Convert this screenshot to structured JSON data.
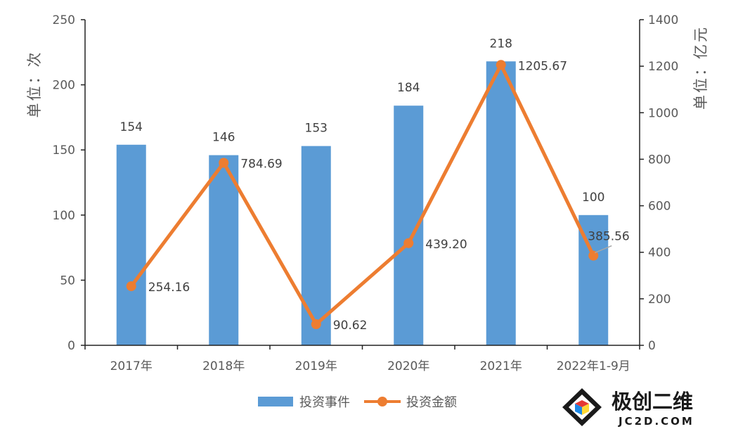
{
  "chart_data": {
    "type": "bar+line",
    "categories": [
      "2017年",
      "2018年",
      "2019年",
      "2020年",
      "2021年",
      "2022年1-9月"
    ],
    "series": [
      {
        "name": "投资事件",
        "type": "bar",
        "axis": "left",
        "color": "#5B9BD5",
        "values": [
          154,
          146,
          153,
          184,
          218,
          100
        ],
        "labels": [
          "154",
          "146",
          "153",
          "184",
          "218",
          "100"
        ]
      },
      {
        "name": "投资金额",
        "type": "line",
        "axis": "right",
        "color": "#ED7D31",
        "values": [
          254.16,
          784.69,
          90.62,
          439.2,
          1205.67,
          385.56
        ],
        "labels": [
          "254.16",
          "784.69",
          "90.62",
          "439.20",
          "1205.67",
          "385.56"
        ]
      }
    ],
    "y_left": {
      "label": "单位：次",
      "ylim": [
        0,
        250
      ],
      "ticks": [
        0,
        50,
        100,
        150,
        200,
        250
      ]
    },
    "y_right": {
      "label": "单位：亿元",
      "ylim": [
        0,
        1400
      ],
      "ticks": [
        0,
        200,
        400,
        600,
        800,
        1000,
        1200,
        1400
      ]
    },
    "legend_position": "bottom",
    "grid": false
  },
  "watermark": {
    "name": "极创二维",
    "domain": "JC2D.COM"
  }
}
